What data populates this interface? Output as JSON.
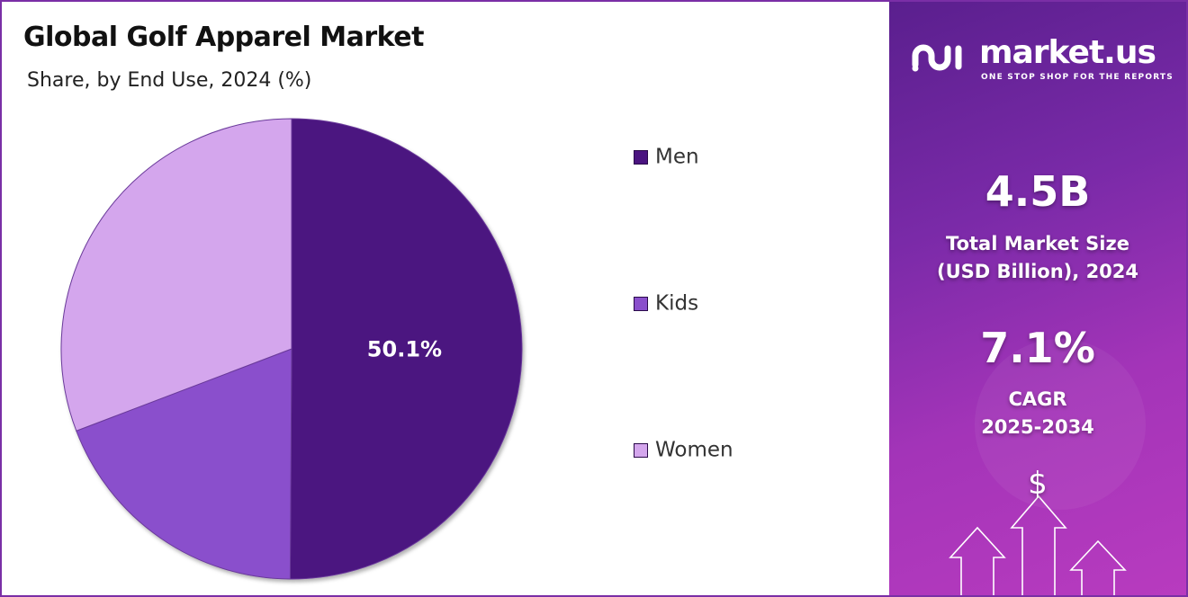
{
  "title": "Global Golf Apparel Market",
  "subtitle": "Share, by End Use, 2024 (%)",
  "chart_data": {
    "type": "pie",
    "categories": [
      "Men",
      "Kids",
      "Women"
    ],
    "values": [
      50.1,
      19.1,
      30.8
    ],
    "colors": [
      "#4b1480",
      "#8a4fcc",
      "#d4a6ed"
    ],
    "data_labels": [
      "50.1%",
      "",
      ""
    ],
    "legend_position": "right",
    "start": "top, clockwise"
  },
  "legend": [
    {
      "label": "Men",
      "color": "#4b1480"
    },
    {
      "label": "Kids",
      "color": "#8a4fcc"
    },
    {
      "label": "Women",
      "color": "#d4a6ed"
    }
  ],
  "panel": {
    "logo_name": "market.us",
    "logo_tagline": "ONE STOP SHOP FOR THE REPORTS",
    "market_size_value": "4.5B",
    "market_size_label_1": "Total Market Size",
    "market_size_label_2": "(USD Billion), 2024",
    "cagr_value": "7.1%",
    "cagr_label": "CAGR",
    "cagr_period": "2025-2034",
    "dollar_symbol": "$"
  }
}
